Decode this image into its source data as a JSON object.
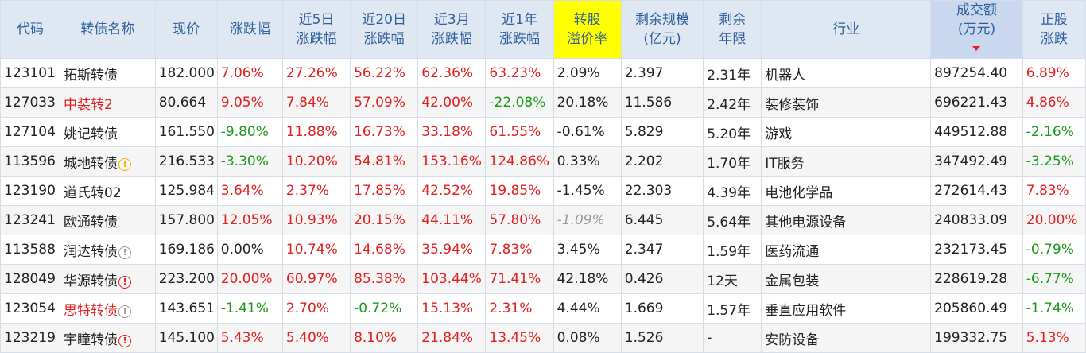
{
  "headers": [
    {
      "l1": "代码",
      "l2": ""
    },
    {
      "l1": "转债名称",
      "l2": ""
    },
    {
      "l1": "现价",
      "l2": ""
    },
    {
      "l1": "涨跌幅",
      "l2": ""
    },
    {
      "l1": "近5日",
      "l2": "涨跌幅"
    },
    {
      "l1": "近20日",
      "l2": "涨跌幅"
    },
    {
      "l1": "近3月",
      "l2": "涨跌幅"
    },
    {
      "l1": "近1年",
      "l2": "涨跌幅"
    },
    {
      "l1": "转股",
      "l2": "溢价率"
    },
    {
      "l1": "剩余规模",
      "l2": "(亿元)"
    },
    {
      "l1": "剩余",
      "l2": "年限"
    },
    {
      "l1": "行业",
      "l2": ""
    },
    {
      "l1": "成交额",
      "l2": "(万元)"
    },
    {
      "l1": "正股",
      "l2": "涨跌"
    }
  ],
  "colors": {
    "up": "#e02020",
    "down": "#1a9a1a",
    "header_bg": "#dfe7f3",
    "highlight": "#ffff00",
    "code": "#1f5fa8"
  },
  "rows": [
    {
      "code": "123101",
      "name": "拓斯转债",
      "name_color": "",
      "badge": "",
      "price": "182.000",
      "chg": "7.06%",
      "chg5": "27.26%",
      "chg20": "56.22%",
      "chg3m": "62.36%",
      "chg1y": "63.23%",
      "premium": "2.09%",
      "premium_style": "",
      "size": "2.397",
      "years": "2.31年",
      "industry": "机器人",
      "turnover": "897254.40",
      "stock_chg": "6.89%"
    },
    {
      "code": "127033",
      "name": "中装转2",
      "name_color": "red",
      "badge": "",
      "price": "80.664",
      "chg": "9.05%",
      "chg5": "7.84%",
      "chg20": "57.09%",
      "chg3m": "42.00%",
      "chg1y": "-22.08%",
      "premium": "20.18%",
      "premium_style": "",
      "size": "11.586",
      "years": "2.42年",
      "industry": "装修装饰",
      "turnover": "696221.43",
      "stock_chg": "4.86%"
    },
    {
      "code": "127104",
      "name": "姚记转债",
      "name_color": "",
      "badge": "",
      "price": "161.550",
      "chg": "-9.80%",
      "chg5": "11.88%",
      "chg20": "16.73%",
      "chg3m": "33.18%",
      "chg1y": "61.55%",
      "premium": "-0.61%",
      "premium_style": "",
      "size": "5.829",
      "years": "5.20年",
      "industry": "游戏",
      "turnover": "449512.88",
      "stock_chg": "-2.16%"
    },
    {
      "code": "113596",
      "name": "城地转债",
      "name_color": "",
      "badge": "yellow",
      "price": "216.533",
      "chg": "-3.30%",
      "chg5": "10.20%",
      "chg20": "54.81%",
      "chg3m": "153.16%",
      "chg1y": "124.86%",
      "premium": "0.33%",
      "premium_style": "",
      "size": "2.202",
      "years": "1.70年",
      "industry": "IT服务",
      "turnover": "347492.49",
      "stock_chg": "-3.25%"
    },
    {
      "code": "123190",
      "name": "道氏转02",
      "name_color": "",
      "badge": "",
      "price": "125.984",
      "chg": "3.64%",
      "chg5": "2.37%",
      "chg20": "17.85%",
      "chg3m": "42.52%",
      "chg1y": "19.85%",
      "premium": "-1.45%",
      "premium_style": "",
      "size": "22.303",
      "years": "4.39年",
      "industry": "电池化学品",
      "turnover": "272614.43",
      "stock_chg": "7.83%"
    },
    {
      "code": "123241",
      "name": "欧通转债",
      "name_color": "",
      "badge": "",
      "price": "157.800",
      "chg": "12.05%",
      "chg5": "10.93%",
      "chg20": "20.15%",
      "chg3m": "44.11%",
      "chg1y": "57.80%",
      "premium": "-1.09%",
      "premium_style": "italic",
      "size": "6.445",
      "years": "5.64年",
      "industry": "其他电源设备",
      "turnover": "240833.09",
      "stock_chg": "20.00%"
    },
    {
      "code": "113588",
      "name": "润达转债",
      "name_color": "",
      "badge": "gray",
      "price": "169.186",
      "chg": "0.00%",
      "chg5": "10.74%",
      "chg20": "14.68%",
      "chg3m": "35.94%",
      "chg1y": "7.83%",
      "premium": "3.45%",
      "premium_style": "",
      "size": "2.347",
      "years": "1.59年",
      "industry": "医药流通",
      "turnover": "232173.45",
      "stock_chg": "-0.79%"
    },
    {
      "code": "128049",
      "name": "华源转债",
      "name_color": "",
      "badge": "red",
      "price": "223.200",
      "chg": "20.00%",
      "chg5": "60.97%",
      "chg20": "85.38%",
      "chg3m": "103.44%",
      "chg1y": "71.41%",
      "premium": "42.18%",
      "premium_style": "",
      "size": "0.426",
      "years": "12天",
      "industry": "金属包装",
      "turnover": "228619.28",
      "stock_chg": "-6.77%"
    },
    {
      "code": "123054",
      "name": "思特转债",
      "name_color": "red",
      "badge": "gray",
      "price": "143.651",
      "chg": "-1.41%",
      "chg5": "2.70%",
      "chg20": "-0.72%",
      "chg3m": "15.13%",
      "chg1y": "2.31%",
      "premium": "4.44%",
      "premium_style": "",
      "size": "1.669",
      "years": "1.57年",
      "industry": "垂直应用软件",
      "turnover": "205860.49",
      "stock_chg": "-1.74%"
    },
    {
      "code": "123219",
      "name": "宇瞳转债",
      "name_color": "",
      "badge": "red",
      "price": "145.100",
      "chg": "5.43%",
      "chg5": "5.40%",
      "chg20": "8.10%",
      "chg3m": "21.84%",
      "chg1y": "13.45%",
      "premium": "0.08%",
      "premium_style": "",
      "size": "1.526",
      "years": "-",
      "industry": "安防设备",
      "turnover": "199332.75",
      "stock_chg": "5.13%"
    }
  ]
}
